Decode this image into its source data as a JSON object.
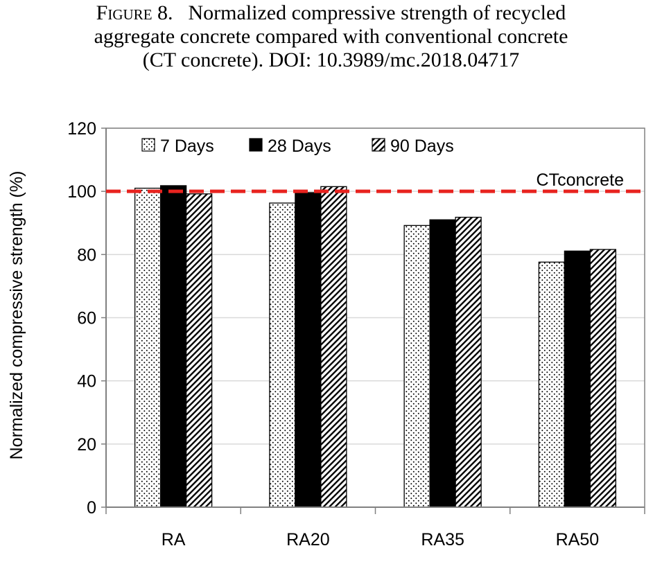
{
  "figure": {
    "label": "Figure 8.",
    "caption_line1": "Normalized compressive strength of recycled",
    "caption_line2": "aggregate concrete compared with conventional concrete",
    "caption_line3": "(CT concrete). DOI: 10.3989/mc.2018.04717"
  },
  "chart_data": {
    "type": "bar",
    "title": "",
    "xlabel": "",
    "ylabel": "Normalized compressive strength (%)",
    "categories": [
      "RA",
      "RA20",
      "RA35",
      "RA50"
    ],
    "series": [
      {
        "name": "7 Days",
        "pattern": "dots",
        "values": [
          101,
          96.3,
          89.2,
          77.6
        ]
      },
      {
        "name": "28 Days",
        "pattern": "solid",
        "values": [
          101.8,
          99.6,
          91.0,
          81.1
        ]
      },
      {
        "name": "90 Days",
        "pattern": "hatch",
        "values": [
          99.2,
          101.5,
          91.8,
          81.6
        ]
      }
    ],
    "ylim": [
      0,
      120
    ],
    "yticks": [
      0,
      20,
      40,
      60,
      80,
      100,
      120
    ],
    "grid": "horizontal",
    "legend_position": "top-left",
    "reference_line": {
      "label": "CTconcrete",
      "value": 100,
      "color": "#e8231f",
      "style": "dashed"
    },
    "colors": {
      "bar_fill": "#000000",
      "bar_edge": "#000000",
      "grid": "#d9d9d9",
      "axis": "#808080"
    }
  }
}
